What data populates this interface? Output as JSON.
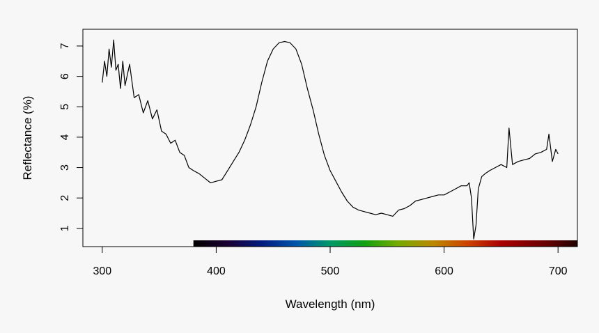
{
  "chart_data": {
    "type": "line",
    "title": "",
    "xlabel": "Wavelength (nm)",
    "ylabel": "Reflectance (%)",
    "xlim": [
      283,
      717
    ],
    "ylim": [
      0.4,
      7.55
    ],
    "xticks": [
      300,
      400,
      500,
      600,
      700
    ],
    "yticks": [
      1,
      2,
      3,
      4,
      5,
      6,
      7
    ],
    "grid": false,
    "legend": "none",
    "line_color": "#000000",
    "background": "#f7f7f7",
    "spectrum_bar": {
      "range": [
        380,
        717
      ],
      "stops": [
        {
          "nm": 380,
          "color": "#000000"
        },
        {
          "nm": 410,
          "color": "#1a0033"
        },
        {
          "nm": 440,
          "color": "#001a80"
        },
        {
          "nm": 470,
          "color": "#0055aa"
        },
        {
          "nm": 500,
          "color": "#009966"
        },
        {
          "nm": 530,
          "color": "#11a011"
        },
        {
          "nm": 560,
          "color": "#77aa00"
        },
        {
          "nm": 590,
          "color": "#bb8800"
        },
        {
          "nm": 620,
          "color": "#cc4400"
        },
        {
          "nm": 650,
          "color": "#aa0000"
        },
        {
          "nm": 690,
          "color": "#660000"
        },
        {
          "nm": 717,
          "color": "#200000"
        }
      ]
    },
    "series": [
      {
        "x": [
          300,
          302,
          304,
          306,
          308,
          310,
          312,
          314,
          316,
          318,
          320,
          324,
          328,
          332,
          336,
          340,
          344,
          348,
          352,
          356,
          360,
          364,
          368,
          372,
          376,
          380,
          385,
          390,
          395,
          400,
          405,
          410,
          415,
          420,
          425,
          430,
          435,
          440,
          445,
          450,
          455,
          460,
          465,
          470,
          475,
          480,
          485,
          490,
          495,
          500,
          505,
          510,
          515,
          520,
          525,
          530,
          535,
          540,
          545,
          550,
          555,
          560,
          565,
          570,
          575,
          580,
          585,
          590,
          595,
          600,
          605,
          610,
          615,
          620,
          622,
          624,
          626,
          628,
          630,
          633,
          636,
          640,
          645,
          650,
          655,
          657,
          660,
          665,
          670,
          675,
          680,
          685,
          690,
          692,
          695,
          698,
          700
        ],
        "y": [
          5.8,
          6.5,
          6.0,
          6.9,
          6.3,
          7.2,
          6.2,
          6.4,
          5.6,
          6.5,
          5.7,
          6.4,
          5.3,
          5.4,
          4.8,
          5.2,
          4.6,
          4.9,
          4.2,
          4.1,
          3.8,
          3.9,
          3.5,
          3.4,
          3.0,
          2.9,
          2.8,
          2.65,
          2.5,
          2.55,
          2.6,
          2.9,
          3.2,
          3.5,
          3.9,
          4.4,
          5.0,
          5.8,
          6.5,
          6.9,
          7.1,
          7.15,
          7.1,
          6.9,
          6.4,
          5.6,
          4.9,
          4.1,
          3.4,
          2.9,
          2.55,
          2.2,
          1.9,
          1.7,
          1.6,
          1.55,
          1.5,
          1.45,
          1.5,
          1.45,
          1.4,
          1.6,
          1.65,
          1.75,
          1.9,
          1.95,
          2.0,
          2.05,
          2.1,
          2.1,
          2.2,
          2.3,
          2.4,
          2.4,
          2.5,
          2.0,
          0.65,
          1.1,
          2.3,
          2.7,
          2.8,
          2.9,
          3.0,
          3.1,
          3.0,
          4.3,
          3.1,
          3.2,
          3.25,
          3.3,
          3.45,
          3.5,
          3.6,
          4.1,
          3.2,
          3.6,
          3.45
        ]
      }
    ]
  }
}
